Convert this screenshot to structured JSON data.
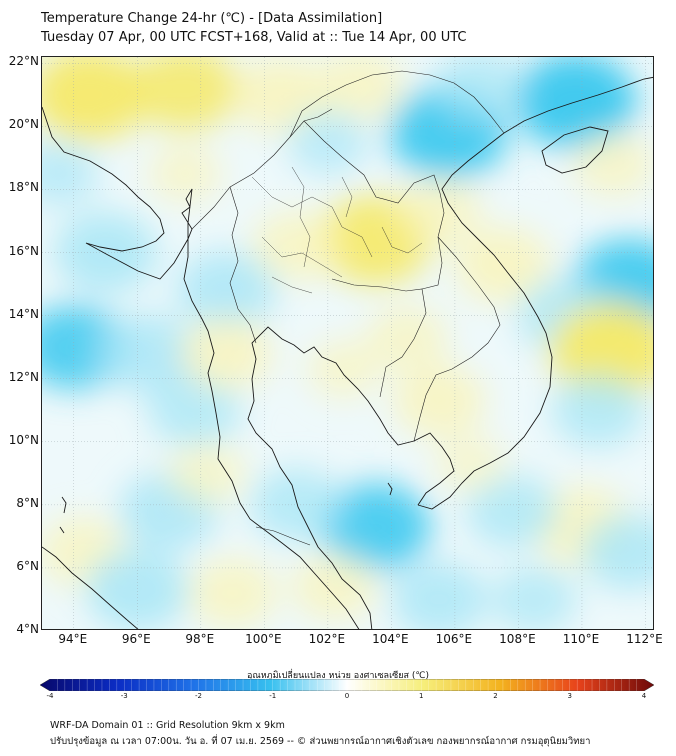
{
  "header": {
    "title_line1": "Temperature Change 24-hr (℃) - [Data Assimilation]",
    "title_line2": "Tuesday 07 Apr, 00 UTC FCST+168, Valid at :: Tue 14 Apr, 00 UTC"
  },
  "map": {
    "lat_labels": [
      {
        "lat": 22,
        "label": "22°N"
      },
      {
        "lat": 20,
        "label": "20°N"
      },
      {
        "lat": 18,
        "label": "18°N"
      },
      {
        "lat": 16,
        "label": "16°N"
      },
      {
        "lat": 14,
        "label": "14°N"
      },
      {
        "lat": 12,
        "label": "12°N"
      },
      {
        "lat": 10,
        "label": "10°N"
      },
      {
        "lat": 8,
        "label": "8°N"
      },
      {
        "lat": 6,
        "label": "6°N"
      },
      {
        "lat": 4,
        "label": "4°N"
      }
    ],
    "lon_labels": [
      {
        "lon": 94,
        "label": "94°E"
      },
      {
        "lon": 96,
        "label": "96°E"
      },
      {
        "lon": 98,
        "label": "98°E"
      },
      {
        "lon": 100,
        "label": "100°E"
      },
      {
        "lon": 102,
        "label": "102°E"
      },
      {
        "lon": 104,
        "label": "104°E"
      },
      {
        "lon": 106,
        "label": "106°E"
      },
      {
        "lon": 108,
        "label": "108°E"
      },
      {
        "lon": 110,
        "label": "110°E"
      },
      {
        "lon": 112,
        "label": "112°E"
      }
    ],
    "lon_range": [
      93,
      112.3
    ],
    "lat_range": [
      4,
      22.2
    ],
    "grid": true,
    "colors": {
      "cool": "#3ec9ef",
      "light_cool": "#a8e6f6",
      "warm": "#f5e96a",
      "light_warm": "#faf4b8",
      "border": "#1a1a1a"
    },
    "anomalies": [
      {
        "lon": 94.5,
        "lat": 21.0,
        "value": 1.6
      },
      {
        "lon": 97.5,
        "lat": 21.2,
        "value": 1.3
      },
      {
        "lon": 100.5,
        "lat": 21.0,
        "value": 1.0
      },
      {
        "lon": 103.0,
        "lat": 21.3,
        "value": 0.8
      },
      {
        "lon": 105.8,
        "lat": 19.8,
        "value": -1.6
      },
      {
        "lon": 109.8,
        "lat": 20.8,
        "value": -1.7
      },
      {
        "lon": 106.8,
        "lat": 21.3,
        "value": -0.8
      },
      {
        "lon": 102.0,
        "lat": 19.5,
        "value": -0.6
      },
      {
        "lon": 103.5,
        "lat": 16.4,
        "value": 1.5
      },
      {
        "lon": 101.0,
        "lat": 16.2,
        "value": 0.8
      },
      {
        "lon": 105.5,
        "lat": 17.3,
        "value": 0.7
      },
      {
        "lon": 107.5,
        "lat": 15.6,
        "value": 1.0
      },
      {
        "lon": 104.5,
        "lat": 13.3,
        "value": 0.6
      },
      {
        "lon": 105.5,
        "lat": 11.3,
        "value": 0.9
      },
      {
        "lon": 102.5,
        "lat": 12.3,
        "value": 0.4
      },
      {
        "lon": 95.0,
        "lat": 16.0,
        "value": -1.2
      },
      {
        "lon": 98.8,
        "lat": 14.8,
        "value": -1.1
      },
      {
        "lon": 94.0,
        "lat": 13.0,
        "value": -1.3
      },
      {
        "lon": 96.3,
        "lat": 12.8,
        "value": -1.1
      },
      {
        "lon": 97.8,
        "lat": 11.0,
        "value": -0.9
      },
      {
        "lon": 98.8,
        "lat": 12.8,
        "value": 0.9
      },
      {
        "lon": 111.5,
        "lat": 15.0,
        "value": -1.5
      },
      {
        "lon": 109.5,
        "lat": 14.0,
        "value": -1.0
      },
      {
        "lon": 110.9,
        "lat": 12.9,
        "value": 1.7
      },
      {
        "lon": 110.5,
        "lat": 11.0,
        "value": -0.9
      },
      {
        "lon": 110.0,
        "lat": 7.3,
        "value": 1.1
      },
      {
        "lon": 111.5,
        "lat": 6.5,
        "value": -1.0
      },
      {
        "lon": 107.8,
        "lat": 7.8,
        "value": -0.9
      },
      {
        "lon": 103.5,
        "lat": 7.3,
        "value": -1.4
      },
      {
        "lon": 101.0,
        "lat": 8.0,
        "value": -0.9
      },
      {
        "lon": 97.0,
        "lat": 7.8,
        "value": -1.1
      },
      {
        "lon": 94.3,
        "lat": 6.5,
        "value": 0.8
      },
      {
        "lon": 96.0,
        "lat": 5.3,
        "value": -1.2
      },
      {
        "lon": 99.0,
        "lat": 5.2,
        "value": 0.8
      },
      {
        "lon": 102.2,
        "lat": 5.4,
        "value": 0.7
      },
      {
        "lon": 105.5,
        "lat": 5.0,
        "value": -1.0
      },
      {
        "lon": 108.5,
        "lat": 5.0,
        "value": -0.7
      },
      {
        "lon": 98.2,
        "lat": 9.0,
        "value": 0.5
      },
      {
        "lon": 106.5,
        "lat": 9.3,
        "value": 0.3
      },
      {
        "lon": 93.5,
        "lat": 18.5,
        "value": -0.6
      },
      {
        "lon": 97.5,
        "lat": 18.5,
        "value": 0.4
      },
      {
        "lon": 111.0,
        "lat": 18.8,
        "value": 0.6
      }
    ]
  },
  "colorbar": {
    "label": "อุณหภูมิเปลี่ยนแปลง หน่วย องศาเซลเซียส (℃)",
    "min": -4,
    "max": 4,
    "ticks": [
      "-4",
      "-3",
      "-2",
      "-1",
      "0",
      "1",
      "2",
      "3",
      "4"
    ],
    "colors": [
      "#08086b",
      "#0b2cc4",
      "#1f72e8",
      "#37c0ef",
      "#ffffff",
      "#f6ee7a",
      "#f3b21e",
      "#e8431b",
      "#6e0a0a"
    ]
  },
  "footer": {
    "line1": "WRF-DA Domain 01 :: Grid Resolution 9km x 9km",
    "line2": "ปรับปรุงข้อมูล ณ เวลา 07:00น. วัน อ. ที่ 07 เม.ย. 2569 -- © ส่วนพยากรณ์อากาศเชิงตัวเลข กองพยากรณ์อากาศ กรมอุตุนิยมวิทยา"
  }
}
